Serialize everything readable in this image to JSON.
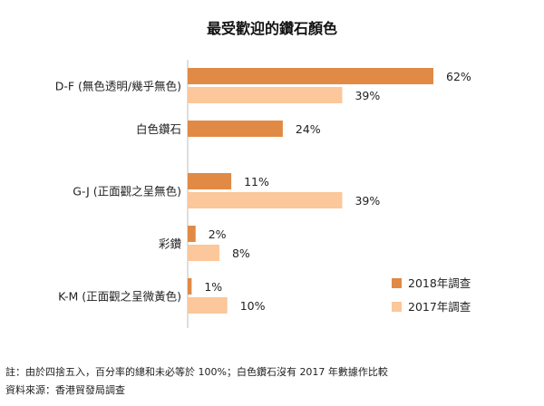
{
  "chart_data": {
    "type": "bar",
    "orientation": "horizontal",
    "title": "最受歡迎的鑽石顏色",
    "categories": [
      "D-F (無色透明/幾乎無色)",
      "白色鑽石",
      "G-J (正面觀之呈無色)",
      "彩鑽",
      "K-M (正面觀之呈微黃色)"
    ],
    "series": [
      {
        "name": "2018年調查",
        "color": "#e08a45",
        "values": [
          62,
          24,
          11,
          2,
          1
        ]
      },
      {
        "name": "2017年調查",
        "color": "#fbc79b",
        "values": [
          39,
          null,
          39,
          8,
          10
        ]
      }
    ],
    "value_suffix": "%",
    "xlim": [
      0,
      70
    ],
    "grid": false,
    "legend_position": "bottom-right"
  },
  "notes": [
    "註：由於四捨五入，百分率的總和未必等於 100%；白色鑽石沒有 2017 年數據作比較",
    "資料來源：香港貿發局調查"
  ]
}
